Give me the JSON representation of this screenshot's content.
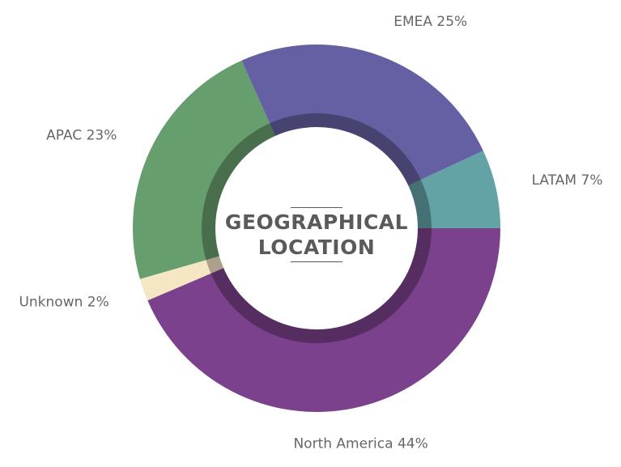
{
  "chart_data": {
    "type": "donut",
    "title": "GEOGRAPHICAL LOCATION",
    "categories": [
      "North America",
      "Unknown",
      "APAC",
      "EMEA",
      "LATAM"
    ],
    "values": [
      44,
      2,
      23,
      25,
      7
    ],
    "value_labels": [
      "44%",
      "2%",
      "23%",
      "25%",
      "7%"
    ],
    "colors": [
      "#7b418c",
      "#f5e6c4",
      "#679e6e",
      "#6560a3",
      "#63a3a6"
    ]
  }
}
